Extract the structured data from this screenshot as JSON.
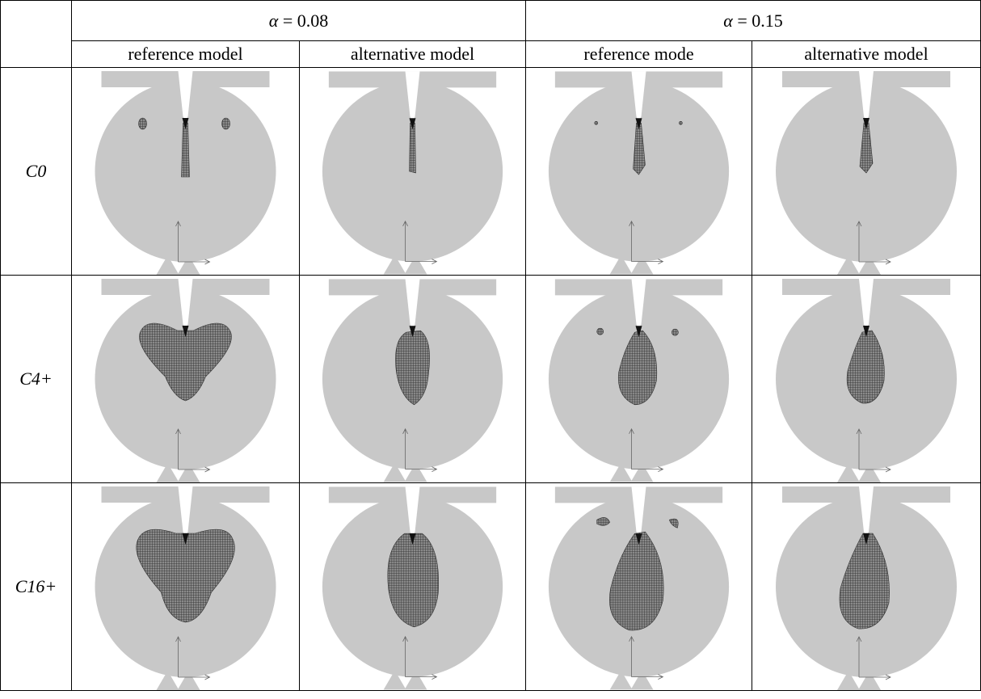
{
  "table": {
    "header": {
      "groups": [
        {
          "symbol": "α",
          "text": "= 0.08"
        },
        {
          "symbol": "α",
          "text": "= 0.15"
        }
      ],
      "columns": [
        "reference model",
        "alternative model",
        "reference mode",
        "alternative model"
      ]
    },
    "rows": [
      {
        "label": "C0"
      },
      {
        "label": "C4+"
      },
      {
        "label": "C16+"
      }
    ]
  }
}
